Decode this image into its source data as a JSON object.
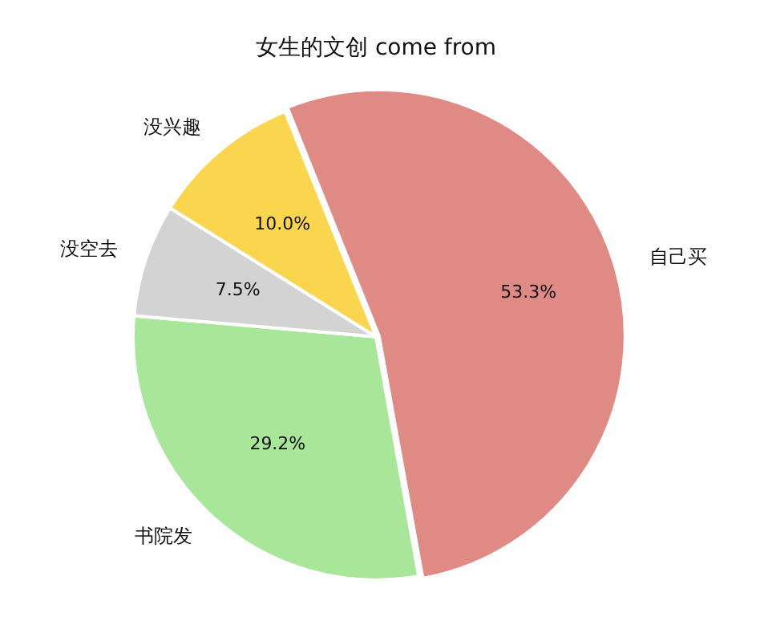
{
  "chart_data": {
    "type": "pie",
    "title": "女生的文创 come from",
    "categories": [
      "自己买",
      "书院发",
      "没空去",
      "没兴趣"
    ],
    "values": [
      53.3,
      29.2,
      7.5,
      10.0
    ],
    "colors": [
      "#e08a85",
      "#a8e69a",
      "#d3d3d3",
      "#f9d64d"
    ],
    "value_labels": [
      "53.3%",
      "29.2%",
      "7.5%",
      "10.0%"
    ],
    "legend": false
  }
}
